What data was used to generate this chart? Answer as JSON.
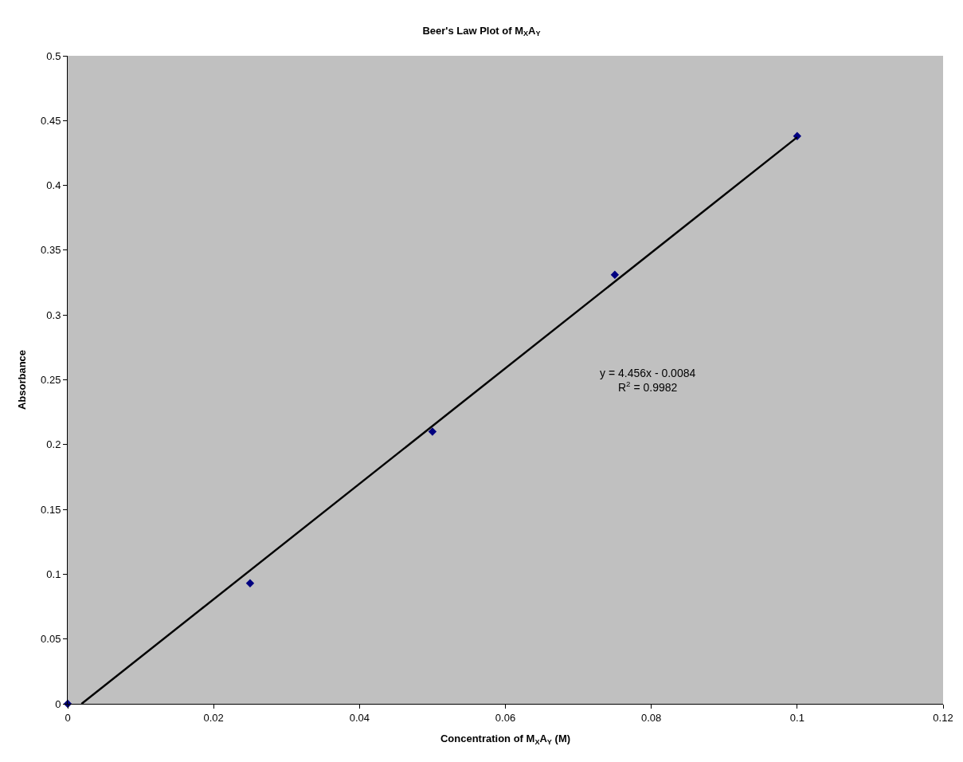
{
  "chart_data": {
    "type": "scatter",
    "title": "Beer's Law Plot of M$_{X}$A$_{Y}$",
    "xlabel": "Concentration of M$_{X}$A$_{Y}$ (M)",
    "ylabel": "Absorbance",
    "series": [
      {
        "color": "#000080",
        "marker": "diamond",
        "x": [
          0,
          0.025,
          0.05,
          0.075,
          0.1
        ],
        "values": [
          0,
          0.093,
          0.21,
          0.331,
          0.438
        ]
      },
      {
        "type": "line",
        "color": "#000000",
        "marker": "none",
        "line_style": "solid",
        "x": [
          0.0019,
          0.1
        ],
        "values": [
          0,
          0.4372
        ]
      }
    ],
    "annotations": [
      "y = 4.456x - 0.0084",
      "R$^{2}$ = 0.9982"
    ],
    "xlim": [
      0,
      0.12
    ],
    "xticks": [
      0,
      0.02,
      0.04,
      0.06,
      0.08,
      0.1,
      0.12
    ],
    "ylim": [
      0,
      0.5
    ],
    "yticks": [
      0,
      0.05,
      0.1,
      0.15,
      0.2,
      0.25,
      0.3,
      0.35,
      0.4,
      0.45,
      0.5
    ],
    "grid": false
  }
}
